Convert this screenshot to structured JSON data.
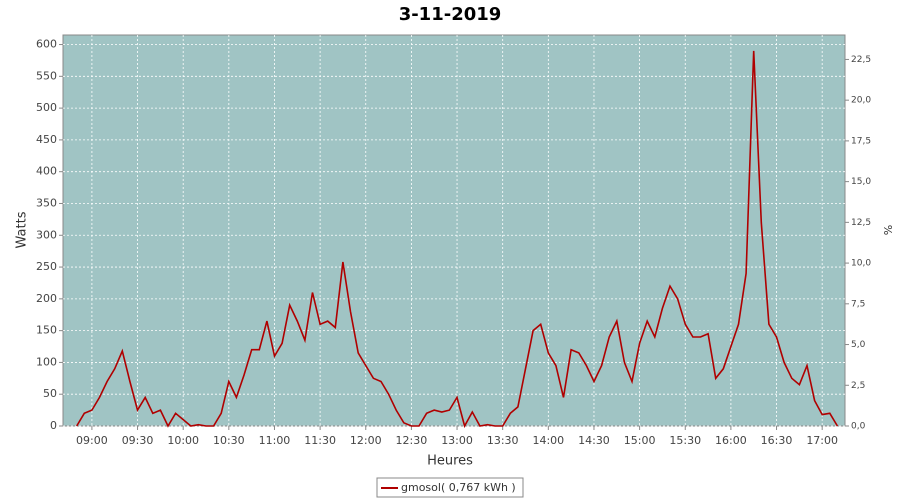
{
  "chart_data": {
    "type": "line",
    "title": "3-11-2019",
    "x_label": "Heures",
    "y_label": "Watts",
    "y2_label": "%",
    "x": [
      "08:50",
      "08:55",
      "09:00",
      "09:05",
      "09:10",
      "09:15",
      "09:20",
      "09:25",
      "09:30",
      "09:35",
      "09:40",
      "09:45",
      "09:50",
      "09:55",
      "10:00",
      "10:05",
      "10:10",
      "10:15",
      "10:20",
      "10:25",
      "10:30",
      "10:35",
      "10:40",
      "10:45",
      "10:50",
      "10:55",
      "11:00",
      "11:05",
      "11:10",
      "11:15",
      "11:20",
      "11:25",
      "11:30",
      "11:35",
      "11:40",
      "11:45",
      "11:50",
      "11:55",
      "12:00",
      "12:05",
      "12:10",
      "12:15",
      "12:20",
      "12:25",
      "12:30",
      "12:35",
      "12:40",
      "12:45",
      "12:50",
      "12:55",
      "13:00",
      "13:05",
      "13:10",
      "13:15",
      "13:20",
      "13:25",
      "13:30",
      "13:35",
      "13:40",
      "13:45",
      "13:50",
      "13:55",
      "14:00",
      "14:05",
      "14:10",
      "14:15",
      "14:20",
      "14:25",
      "14:30",
      "14:35",
      "14:40",
      "14:45",
      "14:50",
      "14:55",
      "15:00",
      "15:05",
      "15:10",
      "15:15",
      "15:20",
      "15:25",
      "15:30",
      "15:35",
      "15:40",
      "15:45",
      "15:50",
      "15:55",
      "16:00",
      "16:05",
      "16:10",
      "16:15",
      "16:20",
      "16:25",
      "16:30",
      "16:35",
      "16:40",
      "16:45",
      "16:50",
      "16:55",
      "17:00",
      "17:05",
      "17:10"
    ],
    "series": [
      {
        "name": "gmosol( 0,767 kWh )",
        "color": "#b00000",
        "values": [
          0,
          20,
          25,
          45,
          70,
          90,
          118,
          70,
          25,
          45,
          20,
          25,
          0,
          20,
          10,
          0,
          2,
          0,
          0,
          20,
          70,
          45,
          80,
          120,
          120,
          165,
          110,
          130,
          190,
          165,
          135,
          210,
          160,
          165,
          155,
          258,
          180,
          115,
          95,
          75,
          70,
          50,
          25,
          5,
          0,
          0,
          20,
          25,
          22,
          25,
          45,
          0,
          22,
          0,
          2,
          0,
          0,
          20,
          30,
          90,
          150,
          160,
          115,
          95,
          45,
          120,
          115,
          95,
          70,
          95,
          140,
          165,
          100,
          70,
          130,
          165,
          140,
          185,
          220,
          200,
          160,
          140,
          140,
          145,
          75,
          90,
          125,
          160,
          240,
          590,
          320,
          160,
          140,
          100,
          75,
          65,
          95,
          40,
          18,
          20,
          0
        ]
      }
    ],
    "xlim": [
      "08:41",
      "17:15"
    ],
    "xticks": [
      "09:00",
      "09:30",
      "10:00",
      "10:30",
      "11:00",
      "11:30",
      "12:00",
      "12:30",
      "13:00",
      "13:30",
      "14:00",
      "14:30",
      "15:00",
      "15:30",
      "16:00",
      "16:30",
      "17:00"
    ],
    "ylim": [
      0,
      615
    ],
    "yticks": [
      0,
      50,
      100,
      150,
      200,
      250,
      300,
      350,
      400,
      450,
      500,
      550,
      600
    ],
    "y2lim": [
      0,
      24
    ],
    "y2ticks": [
      {
        "value": 0,
        "label": "0,0"
      },
      {
        "value": 2.5,
        "label": "2,5"
      },
      {
        "value": 5,
        "label": "5,0"
      },
      {
        "value": 7.5,
        "label": "7,5"
      },
      {
        "value": 10,
        "label": "10,0"
      },
      {
        "value": 12.5,
        "label": "12,5"
      },
      {
        "value": 15,
        "label": "15,0"
      },
      {
        "value": 17.5,
        "label": "17,5"
      },
      {
        "value": 20,
        "label": "20,0"
      },
      {
        "value": 22.5,
        "label": "22,5"
      }
    ],
    "grid": true
  }
}
